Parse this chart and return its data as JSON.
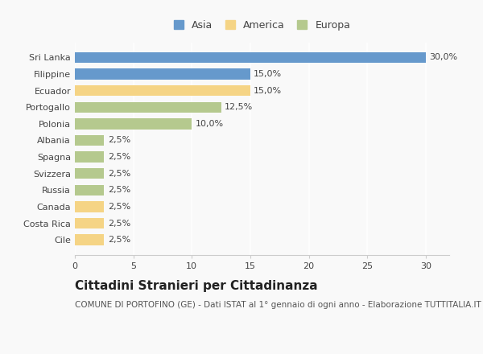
{
  "countries": [
    "Sri Lanka",
    "Filippine",
    "Ecuador",
    "Portogallo",
    "Polonia",
    "Albania",
    "Spagna",
    "Svizzera",
    "Russia",
    "Canada",
    "Costa Rica",
    "Cile"
  ],
  "values": [
    30.0,
    15.0,
    15.0,
    12.5,
    10.0,
    2.5,
    2.5,
    2.5,
    2.5,
    2.5,
    2.5,
    2.5
  ],
  "continents": [
    "Asia",
    "Asia",
    "America",
    "Europa",
    "Europa",
    "Europa",
    "Europa",
    "Europa",
    "Europa",
    "America",
    "America",
    "America"
  ],
  "colors": {
    "Asia": "#6699cc",
    "America": "#f5d485",
    "Europa": "#b5c98e"
  },
  "legend_items": [
    "Asia",
    "America",
    "Europa"
  ],
  "xlim": [
    0,
    32
  ],
  "xticks": [
    0,
    5,
    10,
    15,
    20,
    25,
    30
  ],
  "title": "Cittadini Stranieri per Cittadinanza",
  "subtitle": "COMUNE DI PORTOFINO (GE) - Dati ISTAT al 1° gennaio di ogni anno - Elaborazione TUTTITALIA.IT",
  "background_color": "#f9f9f9",
  "title_fontsize": 11,
  "subtitle_fontsize": 7.5,
  "label_fontsize": 8,
  "tick_fontsize": 8,
  "legend_fontsize": 9
}
